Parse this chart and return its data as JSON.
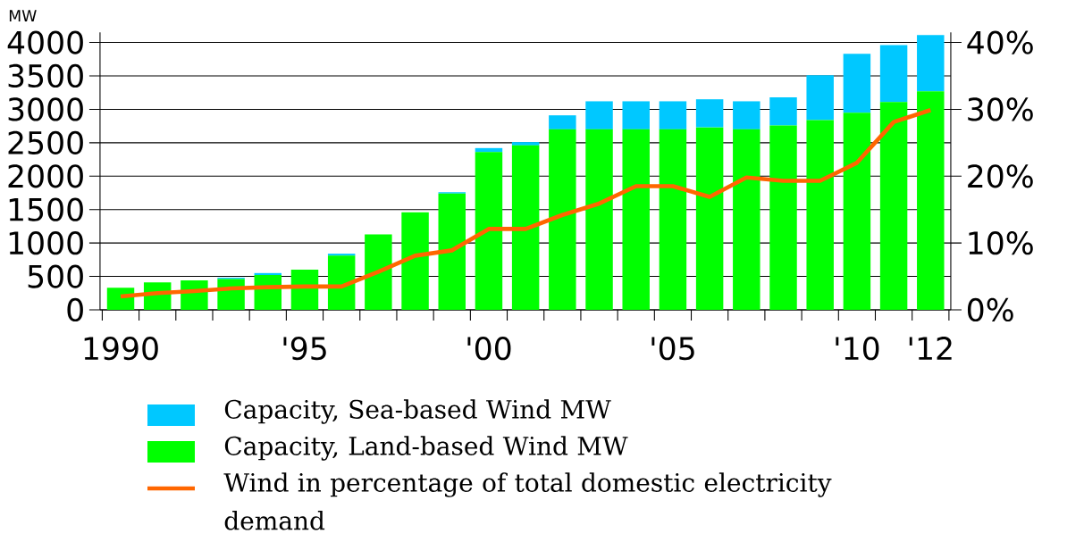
{
  "chart_data": {
    "type": "bar",
    "stacked": true,
    "ylabel": "MW",
    "categories": [
      "1990",
      null,
      null,
      null,
      null,
      "'95",
      null,
      null,
      null,
      null,
      "'00",
      null,
      null,
      null,
      null,
      "'05",
      null,
      null,
      null,
      null,
      "'10",
      null,
      "'12"
    ],
    "series": [
      {
        "name": "Capacity, Land-based Wind MW",
        "color": "#00ff00",
        "values": [
          330,
          410,
          440,
          460,
          520,
          600,
          810,
          1130,
          1460,
          1740,
          2360,
          2460,
          2700,
          2700,
          2700,
          2700,
          2730,
          2700,
          2760,
          2840,
          2950,
          3110,
          3270
        ]
      },
      {
        "name": "Capacity, Sea-based Wind MW",
        "color": "#00c8ff",
        "values": [
          0,
          0,
          0,
          20,
          30,
          0,
          30,
          0,
          0,
          20,
          60,
          50,
          210,
          420,
          420,
          420,
          420,
          420,
          420,
          670,
          880,
          850,
          840
        ]
      },
      {
        "name": "Wind in percentage of total domestic electricity demand",
        "type": "line",
        "axis": "y2",
        "color": "#ff6600",
        "values": [
          2.0,
          2.5,
          2.8,
          3.2,
          3.4,
          3.5,
          3.5,
          5.7,
          8.1,
          8.9,
          12.1,
          12.1,
          14.2,
          15.9,
          18.5,
          18.5,
          16.9,
          19.8,
          19.3,
          19.3,
          22.0,
          28.1,
          29.9
        ]
      }
    ],
    "ylim": [
      0,
      4150
    ],
    "yticks": [
      0,
      500,
      1000,
      1500,
      2000,
      2500,
      3000,
      3500,
      4000
    ],
    "y2lim": [
      0,
      41.5
    ],
    "y2ticks": [
      {
        "value": 0,
        "label": "0%"
      },
      {
        "value": 10,
        "label": "10%"
      },
      {
        "value": 20,
        "label": "20%"
      },
      {
        "value": 30,
        "label": "30%"
      },
      {
        "value": 40,
        "label": "40%"
      }
    ],
    "grid": "y",
    "legend": "bottom",
    "marker": "none",
    "line_style": "solid"
  }
}
